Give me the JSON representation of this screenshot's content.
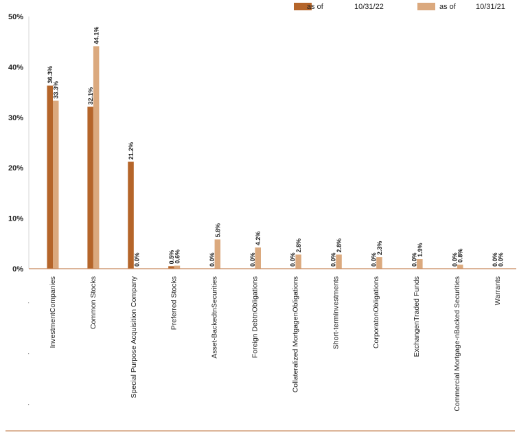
{
  "chart_data": {
    "type": "bar",
    "title": "",
    "xlabel": "",
    "ylabel": "",
    "ylim": [
      0,
      50
    ],
    "yticks": [
      "0%",
      "10%",
      "20%",
      "30%",
      "40%",
      "50%"
    ],
    "legend_position": "top-right",
    "categories": [
      "InvestmentCompanies",
      "Common Stocks",
      "Special Purpose Acquisition Company",
      "Preferred Stocks",
      "Asset-BackedtnSecurities",
      "Foreign DebtnObligations",
      "Collateralized MortgagenObligations",
      "Short-termInvestments",
      "CorporatonObligations",
      "ExchangenTraded Funds",
      "Commercial Mortgage-nBacked Securities",
      "Warrants"
    ],
    "series": [
      {
        "name": "as of",
        "date": "10/31/22",
        "color": "#b5652a",
        "values": [
          36.3,
          32.1,
          21.2,
          0.5,
          0.0,
          0.0,
          0.0,
          0.0,
          0.0,
          0.0,
          0.0,
          0.0
        ],
        "labels": [
          "36.3%",
          "32.1%",
          "21.2%",
          "0.5%",
          "0.0%",
          "0.0%",
          "0.0%",
          "0.0%",
          "0.0%",
          "0.0%",
          "0.0%",
          "0.0%"
        ]
      },
      {
        "name": "as of",
        "date": "10/31/21",
        "color": "#dba97e",
        "values": [
          33.3,
          44.1,
          0.0,
          0.6,
          5.8,
          4.2,
          2.8,
          2.8,
          2.3,
          1.9,
          0.8,
          0.0
        ],
        "labels": [
          "33.3%",
          "44.1%",
          "0.0%",
          "0.6%",
          "5.8%",
          "4.2%",
          "2.8%",
          "2.8%",
          "2.3%",
          "1.9%",
          "0.8%",
          "0.0%"
        ]
      }
    ],
    "axis_color": "#c8875a"
  }
}
